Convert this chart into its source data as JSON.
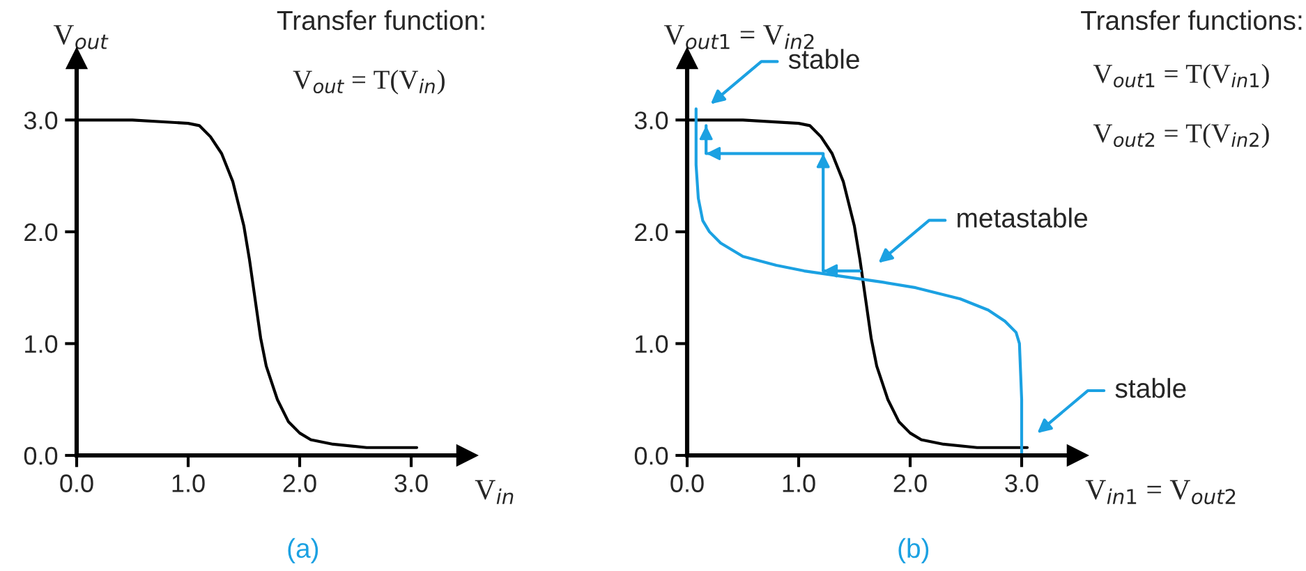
{
  "chart_data": [
    {
      "type": "line",
      "title": "Transfer function:",
      "xlabel": "V$_{in}$",
      "ylabel": "V$_{out}$",
      "annotations": [
        "V$_{out}$ = T(V$_{in}$)",
        "(a)"
      ],
      "xlim": [
        0,
        3.5
      ],
      "ylim": [
        0,
        3.55
      ],
      "xticks": [
        {
          "value": 0,
          "label": "0.0"
        },
        {
          "value": 1,
          "label": "1.0"
        },
        {
          "value": 2,
          "label": "2.0"
        },
        {
          "value": 3,
          "label": "3.0"
        }
      ],
      "yticks": [
        {
          "value": 0,
          "label": "0.0"
        },
        {
          "value": 1,
          "label": "1.0"
        },
        {
          "value": 2,
          "label": "2.0"
        },
        {
          "value": 3,
          "label": "3.0"
        }
      ],
      "grid": false,
      "marker": "none",
      "line_style": "solid",
      "series": [
        {
          "color": "#000000",
          "x": [
            0,
            0.5,
            1.0,
            1.1,
            1.2,
            1.3,
            1.4,
            1.5,
            1.55,
            1.6,
            1.65,
            1.7,
            1.8,
            1.9,
            2.0,
            2.1,
            2.3,
            2.6,
            3.05
          ],
          "values": [
            3.0,
            3.0,
            2.97,
            2.95,
            2.85,
            2.7,
            2.45,
            2.05,
            1.75,
            1.4,
            1.05,
            0.8,
            0.5,
            0.3,
            0.2,
            0.14,
            0.1,
            0.07,
            0.07
          ]
        }
      ]
    },
    {
      "type": "line",
      "title": "Transfer functions:",
      "xlabel": "V$_{in1}$ = V$_{out2}$",
      "ylabel": "V$_{out1}$ = V$_{in2}$",
      "annotations": [
        "V$_{out1}$ = T(V$_{in1}$)",
        "V$_{out2}$ = T(V$_{in2}$)",
        "(b)",
        "stable",
        "metastable",
        "stable"
      ],
      "xlim": [
        0,
        3.5
      ],
      "ylim": [
        0,
        3.55
      ],
      "xticks": [
        {
          "value": 0,
          "label": "0.0"
        },
        {
          "value": 1,
          "label": "1.0"
        },
        {
          "value": 2,
          "label": "2.0"
        },
        {
          "value": 3,
          "label": "3.0"
        }
      ],
      "yticks": [
        {
          "value": 0,
          "label": "0.0"
        },
        {
          "value": 1,
          "label": "1.0"
        },
        {
          "value": 2,
          "label": "2.0"
        },
        {
          "value": 3,
          "label": "3.0"
        }
      ],
      "grid": false,
      "marker": "none",
      "line_style": "solid",
      "series": [
        {
          "color": "#000000",
          "x": [
            0,
            0.5,
            1.0,
            1.1,
            1.2,
            1.3,
            1.4,
            1.5,
            1.55,
            1.6,
            1.65,
            1.7,
            1.8,
            1.9,
            2.0,
            2.1,
            2.3,
            2.6,
            3.05
          ],
          "values": [
            3.0,
            3.0,
            2.97,
            2.95,
            2.85,
            2.7,
            2.45,
            2.05,
            1.75,
            1.4,
            1.05,
            0.8,
            0.5,
            0.3,
            0.2,
            0.14,
            0.1,
            0.07,
            0.07
          ]
        },
        {
          "color": "#1ba1e2",
          "x": [
            0.08,
            0.08,
            0.1,
            0.14,
            0.2,
            0.3,
            0.5,
            0.8,
            1.05,
            1.4,
            1.75,
            2.05,
            2.45,
            2.7,
            2.85,
            2.95,
            2.98,
            3.0,
            3.0
          ],
          "values": [
            3.1,
            2.6,
            2.3,
            2.1,
            2.0,
            1.9,
            1.78,
            1.7,
            1.65,
            1.6,
            1.55,
            1.5,
            1.4,
            1.3,
            1.2,
            1.1,
            1.0,
            0.5,
            0.02
          ]
        },
        {
          "color": "#1ba1e2",
          "x": [
            1.55,
            1.22,
            1.22,
            0.17,
            0.17
          ],
          "values": [
            1.65,
            1.65,
            2.7,
            2.7,
            2.95
          ]
        }
      ]
    }
  ]
}
